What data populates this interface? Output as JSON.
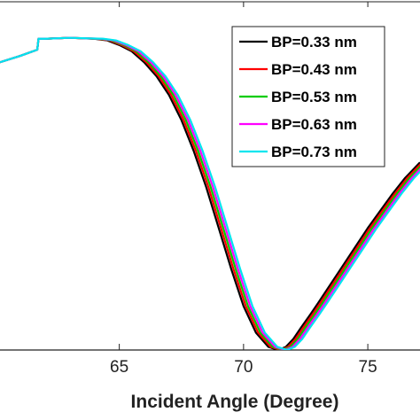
{
  "chart_data": {
    "type": "line",
    "title": "",
    "xlabel": "Incident Angle (Degree)",
    "ylabel": "",
    "xlim": [
      60.2,
      77.1
    ],
    "ylim": [
      0.0,
      1.0
    ],
    "xticks": [
      65,
      70,
      75
    ],
    "x_tick_labels": [
      "65",
      "70",
      "75"
    ],
    "grid": false,
    "legend_position": "top-right",
    "series": [
      {
        "name": "BP=0.33 nm",
        "color": "#000000",
        "shift": 0.0
      },
      {
        "name": "BP=0.43 nm",
        "color": "#ff0000",
        "shift": 0.09
      },
      {
        "name": "BP=0.53 nm",
        "color": "#00cc00",
        "shift": 0.18
      },
      {
        "name": "BP=0.63 nm",
        "color": "#ff00ff",
        "shift": 0.27
      },
      {
        "name": "BP=0.73 nm",
        "color": "#00e5ee",
        "shift": 0.36
      }
    ],
    "base_curve": {
      "x": [
        60.2,
        61.0,
        61.7,
        61.75,
        62.0,
        63.0,
        64.0,
        64.5,
        65.0,
        65.5,
        66.0,
        66.5,
        67.0,
        67.5,
        68.0,
        68.5,
        69.0,
        69.5,
        70.0,
        70.5,
        71.0,
        71.4,
        71.7,
        72.0,
        72.3,
        72.7,
        73.0,
        73.5,
        74.0,
        74.5,
        75.0,
        75.5,
        76.0,
        76.5,
        77.1
      ],
      "y": [
        0.92,
        0.94,
        0.96,
        0.995,
        0.995,
        0.998,
        0.995,
        0.99,
        0.975,
        0.955,
        0.92,
        0.875,
        0.815,
        0.735,
        0.635,
        0.52,
        0.39,
        0.26,
        0.14,
        0.055,
        0.01,
        0.0,
        0.01,
        0.035,
        0.07,
        0.115,
        0.15,
        0.21,
        0.27,
        0.33,
        0.39,
        0.445,
        0.5,
        0.55,
        0.6
      ]
    }
  }
}
